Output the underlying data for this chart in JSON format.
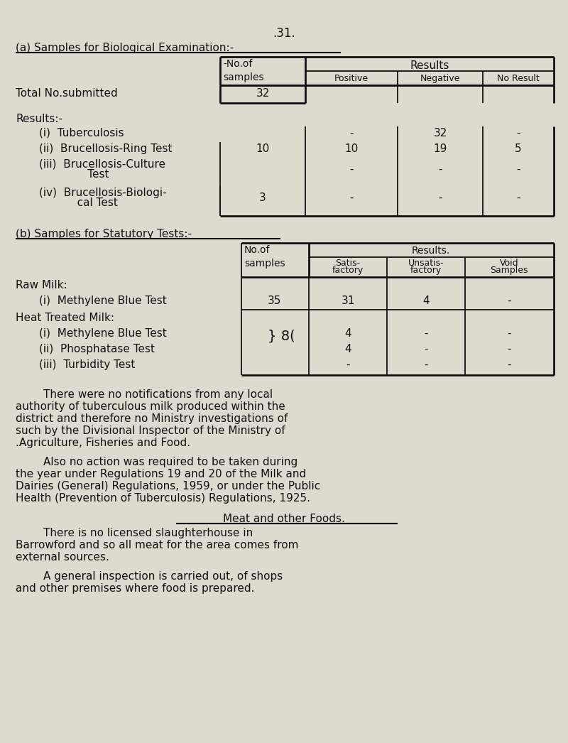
{
  "bg_color": "#dedad0",
  "text_color": "#111111",
  "page_number": ".31.",
  "section_a_title": "(a) Samples for Biological Examination:-",
  "section_b_title": "(b) Samples for Statutory Tests:-",
  "meat_title": "Meat and other Foods.",
  "para1_lines": [
    "        There were no notifications from any local",
    "authority of tuberculous milk produced within the",
    "district and therefore no Ministry investigations of",
    "such by the Divisional Inspector of the Ministry of",
    "Āgriculture, Fisheries and Food."
  ],
  "para2_lines": [
    "        Also no action was required to be taken during",
    "the year under Regulations 19 and 20 of the Milk and",
    "Dairies (General) Regulations, 1959, or under the Public",
    "Health (Prevention of Tuberculosis) Regulations, 1925."
  ],
  "para3_lines": [
    "        There is no licensed slaughterhouse in",
    "Barrowford and so all meat for the area comes from",
    "external sources."
  ],
  "para4_lines": [
    "        A general inspection is carried out, of shops",
    "and other premises where food is prepared."
  ]
}
